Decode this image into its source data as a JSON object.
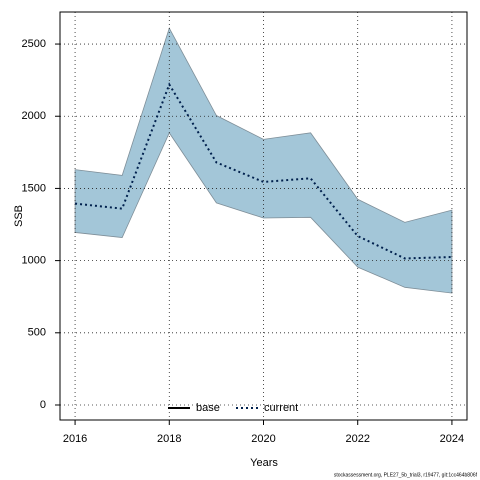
{
  "chart_data": {
    "type": "line",
    "x_label": "Years",
    "y_label": "SSB",
    "footnote": "stockassessment.org, PLE27_5b_trial3, r19477, git:1cc464b806f",
    "x": [
      2016,
      2017,
      2018,
      2019,
      2020,
      2021,
      2022,
      2023,
      2024
    ],
    "series": [
      {
        "name": "base",
        "color": "#000000",
        "style": "solid",
        "values": [
          null,
          null,
          null,
          null,
          null,
          null,
          null,
          null,
          null
        ]
      },
      {
        "name": "current",
        "color": "#00204d",
        "style": "dotted",
        "values": [
          1395,
          1360,
          2220,
          1680,
          1545,
          1570,
          1170,
          1015,
          1025
        ],
        "upper": [
          1630,
          1590,
          2610,
          2005,
          1840,
          1885,
          1425,
          1265,
          1350
        ],
        "lower": [
          1195,
          1160,
          1885,
          1400,
          1295,
          1300,
          955,
          815,
          775
        ],
        "band_color": "#a3c6d8"
      }
    ],
    "xlim": [
      2015.68,
      2024.32
    ],
    "xticks": [
      2016,
      2018,
      2020,
      2022,
      2024
    ],
    "ylim": [
      -104,
      2722
    ],
    "yticks": [
      0,
      500,
      1000,
      1500,
      2000,
      2500
    ],
    "grid": true,
    "legend": "bottom"
  }
}
